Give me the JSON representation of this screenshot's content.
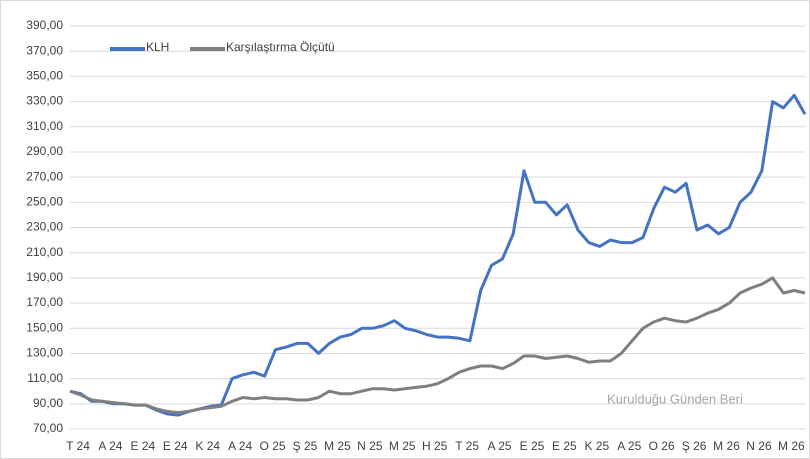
{
  "chart_data": {
    "type": "line",
    "annotation": "Kurulduğu Günden Beri",
    "categories": [
      "T 24",
      null,
      null,
      "A 24",
      null,
      null,
      "E 24",
      null,
      null,
      "E 24",
      null,
      null,
      "K 24",
      null,
      null,
      "A 24",
      null,
      null,
      "O 25",
      null,
      null,
      "Ş 25",
      null,
      null,
      "M 25",
      null,
      null,
      "N 25",
      null,
      null,
      "M 25",
      null,
      null,
      "H 25",
      null,
      null,
      "T 25",
      null,
      null,
      "A 25",
      null,
      null,
      "E 25",
      null,
      null,
      "E 25",
      null,
      null,
      "K 25",
      null,
      null,
      "A 25",
      null,
      null,
      "O 26",
      null,
      null,
      "Ş 26",
      null,
      null,
      "M 26",
      null,
      null,
      "N 26",
      null,
      null,
      "M 26",
      null,
      null
    ],
    "series": [
      {
        "name": "KLH",
        "color": "#4472c4",
        "values": [
          100,
          98,
          92,
          92,
          90,
          90,
          89,
          89,
          85,
          82,
          81,
          84,
          86,
          88,
          89,
          110,
          113,
          115,
          112,
          133,
          135,
          138,
          138,
          130,
          138,
          143,
          145,
          150,
          150,
          152,
          156,
          150,
          148,
          145,
          143,
          143,
          142,
          140,
          180,
          200,
          205,
          225,
          275,
          250,
          250,
          240,
          248,
          228,
          218,
          215,
          220,
          218,
          218,
          222,
          245,
          262,
          258,
          265,
          228,
          232,
          225,
          230,
          250,
          258,
          275,
          330,
          325,
          335,
          320
        ]
      },
      {
        "name": "Karşılaştırma Ölçütü",
        "color": "#7f7f7f",
        "values": [
          100,
          97,
          93,
          92,
          91,
          90,
          89,
          89,
          86,
          84,
          83,
          84,
          86,
          87,
          88,
          92,
          95,
          94,
          95,
          94,
          94,
          93,
          93,
          95,
          100,
          98,
          98,
          100,
          102,
          102,
          101,
          102,
          103,
          104,
          106,
          110,
          115,
          118,
          120,
          120,
          118,
          122,
          128,
          128,
          126,
          127,
          128,
          126,
          123,
          124,
          124,
          130,
          140,
          150,
          155,
          158,
          156,
          155,
          158,
          162,
          165,
          170,
          178,
          182,
          185,
          190,
          178,
          180,
          178
        ]
      }
    ],
    "ylim": [
      70,
      390
    ],
    "yticks": [
      {
        "value": 70,
        "label": "70,00"
      },
      {
        "value": 90,
        "label": "90,00"
      },
      {
        "value": 110,
        "label": "110,00"
      },
      {
        "value": 130,
        "label": "130,00"
      },
      {
        "value": 150,
        "label": "150,00"
      },
      {
        "value": 170,
        "label": "170,00"
      },
      {
        "value": 190,
        "label": "190,00"
      },
      {
        "value": 210,
        "label": "210,00"
      },
      {
        "value": 230,
        "label": "230,00"
      },
      {
        "value": 250,
        "label": "250,00"
      },
      {
        "value": 270,
        "label": "270,00"
      },
      {
        "value": 290,
        "label": "290,00"
      },
      {
        "value": 310,
        "label": "310,00"
      },
      {
        "value": 330,
        "label": "330,00"
      },
      {
        "value": 350,
        "label": "350,00"
      },
      {
        "value": 370,
        "label": "370,00"
      },
      {
        "value": 390,
        "label": "390,00"
      }
    ],
    "grid": true,
    "legend": "top-left"
  }
}
